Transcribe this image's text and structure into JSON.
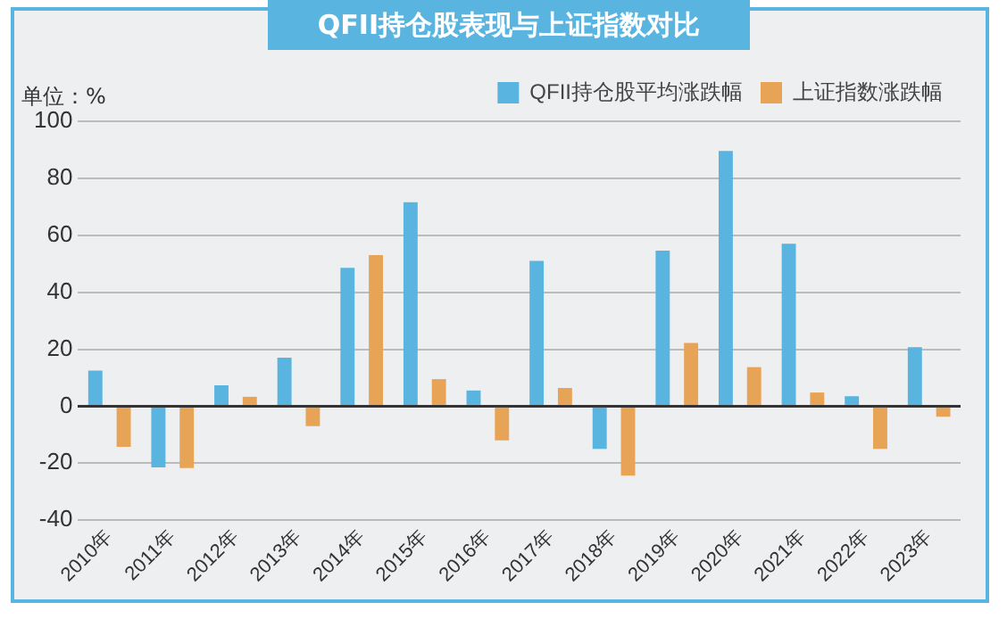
{
  "chart_data": {
    "type": "bar",
    "title": "QFII持仓股表现与上证指数对比",
    "ylabel": "单位：%",
    "categories": [
      "2010年",
      "2011年",
      "2012年",
      "2013年",
      "2014年",
      "2015年",
      "2016年",
      "2017年",
      "2018年",
      "2019年",
      "2020年",
      "2021年",
      "2022年",
      "2023年"
    ],
    "series": [
      {
        "name": "QFII持仓股平均涨跌幅",
        "color": "#5ab4e0",
        "values": [
          12.5,
          -21.5,
          7.3,
          17,
          48.6,
          71.6,
          5.5,
          51,
          -15,
          54.6,
          89.6,
          57,
          3.5,
          20.7
        ]
      },
      {
        "name": "上证指数涨跌幅",
        "color": "#e8a456",
        "values": [
          -14.3,
          -21.7,
          3.3,
          -7,
          53,
          9.5,
          -12,
          6.4,
          -24.4,
          22.2,
          13.7,
          4.8,
          -15,
          -3.7
        ]
      }
    ],
    "ylim": [
      -40,
      100
    ],
    "yticks": [
      -40,
      -20,
      0,
      20,
      40,
      60,
      80,
      100
    ],
    "grid": "y",
    "legend": "top"
  }
}
